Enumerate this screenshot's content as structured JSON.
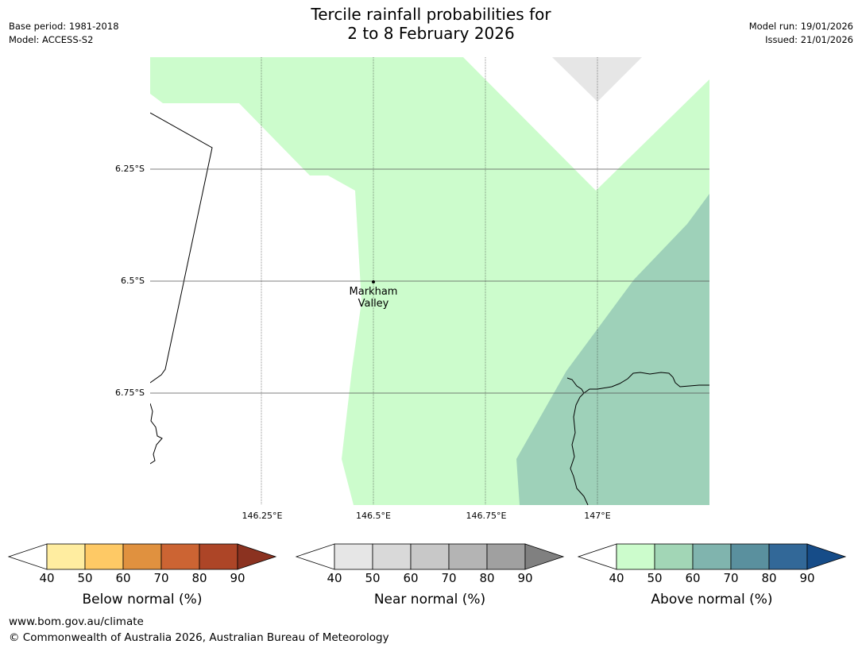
{
  "header": {
    "title_line1": "Tercile rainfall probabilities for",
    "title_line2": "2 to 8 February 2026",
    "base_period": "Base period: 1981-2018",
    "model": "Model: ACCESS-S2",
    "model_run": "Model run: 19/01/2026",
    "issued": "Issued: 21/01/2026"
  },
  "map": {
    "lat_labels": [
      "6.25°S",
      "6.5°S",
      "6.75°S"
    ],
    "lon_labels": [
      "146.25°E",
      "146.5°E",
      "146.75°E",
      "147°E"
    ],
    "place": {
      "name_line1": "Markham",
      "name_line2": "Valley"
    },
    "region_colors": {
      "above_40_50": "#ccfccc",
      "above_50_60": "#9ed1b9",
      "near_40_50": "#e6e6e6"
    }
  },
  "colorbars": {
    "below": {
      "label": "Below normal (%)",
      "ticks": [
        "40",
        "50",
        "60",
        "70",
        "80",
        "90"
      ],
      "colors": [
        "#ffeda0",
        "#fec965",
        "#e0913f",
        "#cc6433",
        "#ad4527"
      ],
      "extend_color": "#8b3220"
    },
    "near": {
      "label": "Near normal (%)",
      "ticks": [
        "40",
        "50",
        "60",
        "70",
        "80",
        "90"
      ],
      "colors": [
        "#e6e6e6",
        "#d9d9d9",
        "#c8c8c8",
        "#b4b4b4",
        "#a0a0a0"
      ],
      "extend_color": "#808080"
    },
    "above": {
      "label": "Above normal (%)",
      "ticks": [
        "40",
        "50",
        "60",
        "70",
        "80",
        "90"
      ],
      "colors": [
        "#ccfccc",
        "#a2d6b6",
        "#80b4ae",
        "#5a909e",
        "#326898"
      ],
      "extend_color": "#164c88"
    }
  },
  "footer": {
    "url": "www.bom.gov.au/climate",
    "copyright": "© Commonwealth of Australia 2026, Australian Bureau of Meteorology"
  }
}
